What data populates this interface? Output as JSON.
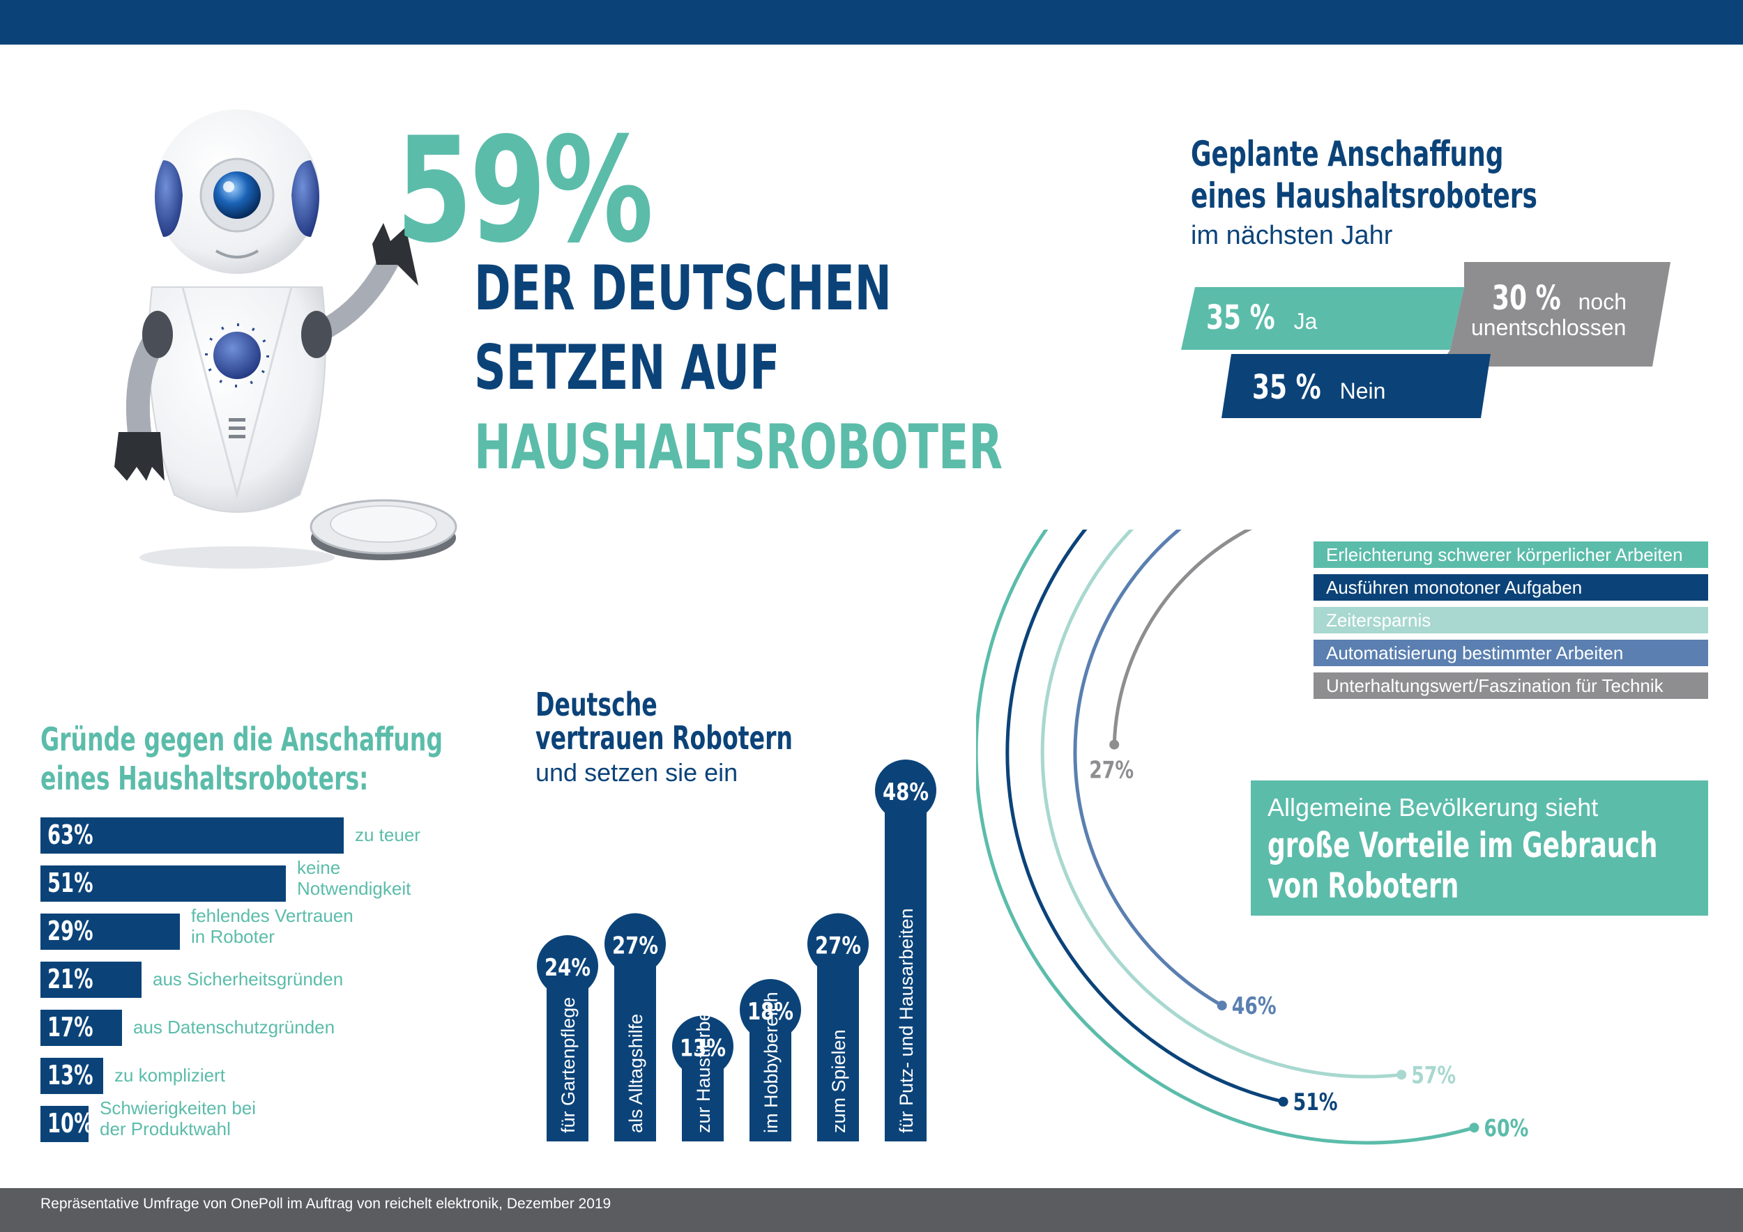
{
  "hero": {
    "percent": "59%",
    "line1": "DER DEUTSCHEN",
    "line2": "SETZEN AUF",
    "line3": "HAUSHALTSROBOTER"
  },
  "plan": {
    "title_line1": "Geplante Anschaffung",
    "title_line2": "eines Haushaltsroboters",
    "subtitle": "im nächsten Jahr",
    "ja": {
      "value": "35 %",
      "label": "Ja"
    },
    "unentschlossen": {
      "value": "30 %",
      "label_1": "noch",
      "label_2": "unentschlossen"
    },
    "nein": {
      "value": "35 %",
      "label": "Nein"
    }
  },
  "against": {
    "title_line1": "Gründe gegen die Anschaffung",
    "title_line2": "eines Haushaltsroboters:"
  },
  "trust": {
    "title_line1": "Deutsche",
    "title_line2": "vertrauen Robotern",
    "subtitle": "und setzen sie ein"
  },
  "advantages": {
    "box_line1": "Allgemeine Bevölkerung sieht",
    "box_line2": "große Vorteile im Gebrauch",
    "box_line3": "von Robotern"
  },
  "colors": {
    "navy": "#0b4379",
    "teal": "#5bbcaa",
    "light_teal": "#a8d8d0",
    "steel_blue": "#5a7fb0",
    "gray": "#8e8e91"
  },
  "footer": "Repräsentative Umfrage von OnePoll im Auftrag von reichelt elektronik, Dezember 2019",
  "chart_data": [
    {
      "type": "bar",
      "orientation": "horizontal",
      "categories": [
        "zu teuer",
        "keine\nNotwendigkeit",
        "fehlendes Vertrauen\nin Roboter",
        "aus Sicherheitsgründen",
        "aus Datenschutzgründen",
        "zu kompliziert",
        "Schwierigkeiten bei\nder Produktwahl"
      ],
      "values": [
        63,
        51,
        29,
        21,
        17,
        13,
        10
      ],
      "labels": [
        "63%",
        "51%",
        "29%",
        "21%",
        "17%",
        "13%",
        "10%"
      ]
    },
    {
      "type": "bar",
      "orientation": "vertical",
      "categories": [
        "für Gartenpflege",
        "als Alltagshilfe",
        "zur Haustierbetreuung",
        "im Hobbybereich",
        "zum Spielen",
        "für Putz- und Hausarbeiten"
      ],
      "values": [
        24,
        27,
        13,
        18,
        27,
        48
      ],
      "labels": [
        "24%",
        "27%",
        "13%",
        "18%",
        "27%",
        "48%"
      ]
    },
    {
      "type": "radial-bar",
      "series": [
        {
          "name": "Erleichterung schwerer körperlicher Arbeiten",
          "value": 60,
          "label": "60%",
          "color": "#5bbcaa"
        },
        {
          "name": "Ausführen monotoner Aufgaben",
          "value": 51,
          "label": "51%",
          "color": "#0b4379"
        },
        {
          "name": "Zeitersparnis",
          "value": 57,
          "label": "57%",
          "color": "#a8d8d0"
        },
        {
          "name": "Automatisierung bestimmter Arbeiten",
          "value": 46,
          "label": "46%",
          "color": "#5a7fb0"
        },
        {
          "name": "Unterhaltungswert/Faszination für Technik",
          "value": 27,
          "label": "27%",
          "color": "#8e8e91"
        }
      ]
    }
  ]
}
